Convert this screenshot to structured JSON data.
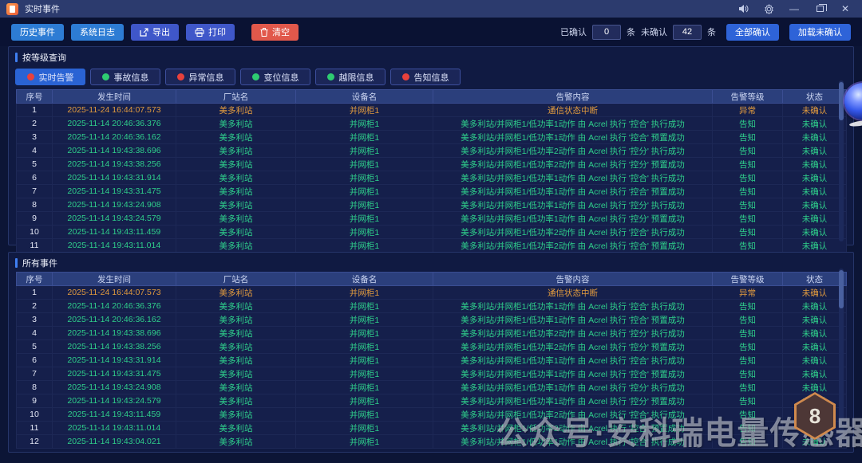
{
  "window": {
    "title": "实时事件"
  },
  "toolbar": {
    "history_label": "历史事件",
    "syslog_label": "系统日志",
    "export_label": "导出",
    "print_label": "打印",
    "clear_label": "清空",
    "confirmed_label": "已确认",
    "confirmed_value": "0",
    "unit_label": "条",
    "unconfirmed_label": "未确认",
    "unconfirmed_value": "42",
    "confirm_all_label": "全部确认",
    "load_unconfirmed_label": "加载未确认"
  },
  "filters": {
    "section_title": "按等级查询",
    "items": [
      {
        "label": "实时告警",
        "dot": "red",
        "active": true
      },
      {
        "label": "事故信息",
        "dot": "green",
        "active": false
      },
      {
        "label": "异常信息",
        "dot": "red",
        "active": false
      },
      {
        "label": "变位信息",
        "dot": "green",
        "active": false
      },
      {
        "label": "越限信息",
        "dot": "green",
        "active": false
      },
      {
        "label": "告知信息",
        "dot": "red",
        "active": false
      }
    ]
  },
  "columns": [
    {
      "key": "no",
      "label": "序号"
    },
    {
      "key": "time",
      "label": "发生时间"
    },
    {
      "key": "station",
      "label": "厂站名"
    },
    {
      "key": "device",
      "label": "设备名"
    },
    {
      "key": "content",
      "label": "告警内容"
    },
    {
      "key": "level",
      "label": "告警等级"
    },
    {
      "key": "status",
      "label": "状态"
    }
  ],
  "realtime_table": {
    "rows": [
      {
        "no": "1",
        "time": "2025-11-24 16:44:07.573",
        "station": "美多利站",
        "device": "并网柜1",
        "content": "通信状态中断",
        "level": "异常",
        "status": "未确认",
        "tone": "orange"
      },
      {
        "no": "2",
        "time": "2025-11-14 20:46:36.376",
        "station": "美多利站",
        "device": "并网柜1",
        "content": "美多利站/并网柜1/低功率1动作 由 Acrel 执行 '控合' 执行成功",
        "level": "告知",
        "status": "未确认",
        "tone": "green"
      },
      {
        "no": "3",
        "time": "2025-11-14 20:46:36.162",
        "station": "美多利站",
        "device": "并网柜1",
        "content": "美多利站/并网柜1/低功率1动作 由 Acrel 执行 '控合' 预置成功",
        "level": "告知",
        "status": "未确认",
        "tone": "green"
      },
      {
        "no": "4",
        "time": "2025-11-14 19:43:38.696",
        "station": "美多利站",
        "device": "并网柜1",
        "content": "美多利站/并网柜1/低功率2动作 由 Acrel 执行 '控分' 执行成功",
        "level": "告知",
        "status": "未确认",
        "tone": "green"
      },
      {
        "no": "5",
        "time": "2025-11-14 19:43:38.256",
        "station": "美多利站",
        "device": "并网柜1",
        "content": "美多利站/并网柜1/低功率2动作 由 Acrel 执行 '控分' 预置成功",
        "level": "告知",
        "status": "未确认",
        "tone": "green"
      },
      {
        "no": "6",
        "time": "2025-11-14 19:43:31.914",
        "station": "美多利站",
        "device": "并网柜1",
        "content": "美多利站/并网柜1/低功率1动作 由 Acrel 执行 '控合' 执行成功",
        "level": "告知",
        "status": "未确认",
        "tone": "green"
      },
      {
        "no": "7",
        "time": "2025-11-14 19:43:31.475",
        "station": "美多利站",
        "device": "并网柜1",
        "content": "美多利站/并网柜1/低功率1动作 由 Acrel 执行 '控合' 预置成功",
        "level": "告知",
        "status": "未确认",
        "tone": "green"
      },
      {
        "no": "8",
        "time": "2025-11-14 19:43:24.908",
        "station": "美多利站",
        "device": "并网柜1",
        "content": "美多利站/并网柜1/低功率1动作 由 Acrel 执行 '控分' 执行成功",
        "level": "告知",
        "status": "未确认",
        "tone": "green"
      },
      {
        "no": "9",
        "time": "2025-11-14 19:43:24.579",
        "station": "美多利站",
        "device": "并网柜1",
        "content": "美多利站/并网柜1/低功率1动作 由 Acrel 执行 '控分' 预置成功",
        "level": "告知",
        "status": "未确认",
        "tone": "green"
      },
      {
        "no": "10",
        "time": "2025-11-14 19:43:11.459",
        "station": "美多利站",
        "device": "并网柜1",
        "content": "美多利站/并网柜1/低功率2动作 由 Acrel 执行 '控合' 执行成功",
        "level": "告知",
        "status": "未确认",
        "tone": "green"
      },
      {
        "no": "11",
        "time": "2025-11-14 19:43:11.014",
        "station": "美多利站",
        "device": "并网柜1",
        "content": "美多利站/并网柜1/低功率2动作 由 Acrel 执行 '控合' 预置成功",
        "level": "告知",
        "status": "未确认",
        "tone": "green"
      }
    ]
  },
  "all_events": {
    "section_title": "所有事件",
    "rows": [
      {
        "no": "1",
        "time": "2025-11-24 16:44:07.573",
        "station": "美多利站",
        "device": "并网柜1",
        "content": "通信状态中断",
        "level": "异常",
        "status": "未确认",
        "tone": "orange"
      },
      {
        "no": "2",
        "time": "2025-11-14 20:46:36.376",
        "station": "美多利站",
        "device": "并网柜1",
        "content": "美多利站/并网柜1/低功率1动作 由 Acrel 执行 '控合' 执行成功",
        "level": "告知",
        "status": "未确认",
        "tone": "green"
      },
      {
        "no": "3",
        "time": "2025-11-14 20:46:36.162",
        "station": "美多利站",
        "device": "并网柜1",
        "content": "美多利站/并网柜1/低功率1动作 由 Acrel 执行 '控合' 预置成功",
        "level": "告知",
        "status": "未确认",
        "tone": "green"
      },
      {
        "no": "4",
        "time": "2025-11-14 19:43:38.696",
        "station": "美多利站",
        "device": "并网柜1",
        "content": "美多利站/并网柜1/低功率2动作 由 Acrel 执行 '控分' 执行成功",
        "level": "告知",
        "status": "未确认",
        "tone": "green"
      },
      {
        "no": "5",
        "time": "2025-11-14 19:43:38.256",
        "station": "美多利站",
        "device": "并网柜1",
        "content": "美多利站/并网柜1/低功率2动作 由 Acrel 执行 '控分' 预置成功",
        "level": "告知",
        "status": "未确认",
        "tone": "green"
      },
      {
        "no": "6",
        "time": "2025-11-14 19:43:31.914",
        "station": "美多利站",
        "device": "并网柜1",
        "content": "美多利站/并网柜1/低功率1动作 由 Acrel 执行 '控合' 执行成功",
        "level": "告知",
        "status": "未确认",
        "tone": "green"
      },
      {
        "no": "7",
        "time": "2025-11-14 19:43:31.475",
        "station": "美多利站",
        "device": "并网柜1",
        "content": "美多利站/并网柜1/低功率1动作 由 Acrel 执行 '控合' 预置成功",
        "level": "告知",
        "status": "未确认",
        "tone": "green"
      },
      {
        "no": "8",
        "time": "2025-11-14 19:43:24.908",
        "station": "美多利站",
        "device": "并网柜1",
        "content": "美多利站/并网柜1/低功率1动作 由 Acrel 执行 '控分' 执行成功",
        "level": "告知",
        "status": "未确认",
        "tone": "green"
      },
      {
        "no": "9",
        "time": "2025-11-14 19:43:24.579",
        "station": "美多利站",
        "device": "并网柜1",
        "content": "美多利站/并网柜1/低功率1动作 由 Acrel 执行 '控分' 预置成功",
        "level": "告知",
        "status": "未确认",
        "tone": "green"
      },
      {
        "no": "10",
        "time": "2025-11-14 19:43:11.459",
        "station": "美多利站",
        "device": "并网柜1",
        "content": "美多利站/并网柜1/低功率2动作 由 Acrel 执行 '控合' 执行成功",
        "level": "告知",
        "status": "未确认",
        "tone": "green"
      },
      {
        "no": "11",
        "time": "2025-11-14 19:43:11.014",
        "station": "美多利站",
        "device": "并网柜1",
        "content": "美多利站/并网柜1/低功率2动作 由 Acrel 执行 '控合' 预置成功",
        "level": "告知",
        "status": "未确认",
        "tone": "green"
      },
      {
        "no": "12",
        "time": "2025-11-14 19:43:04.021",
        "station": "美多利站",
        "device": "并网柜1",
        "content": "美多利站/并网柜1/低功率1动作 由 Acrel 执行 '控合' 执行成功",
        "level": "告知",
        "status": "未确认",
        "tone": "green"
      }
    ]
  },
  "watermark": {
    "text": "公众号·安科瑞电量传感器",
    "badge": "8"
  },
  "colors": {
    "accent_blue": "#2a63d4",
    "alarm_orange": "#e09a3e",
    "event_green": "#2fcf8b",
    "header_blue": "#2b3f7c",
    "danger_red": "#e1584b"
  }
}
